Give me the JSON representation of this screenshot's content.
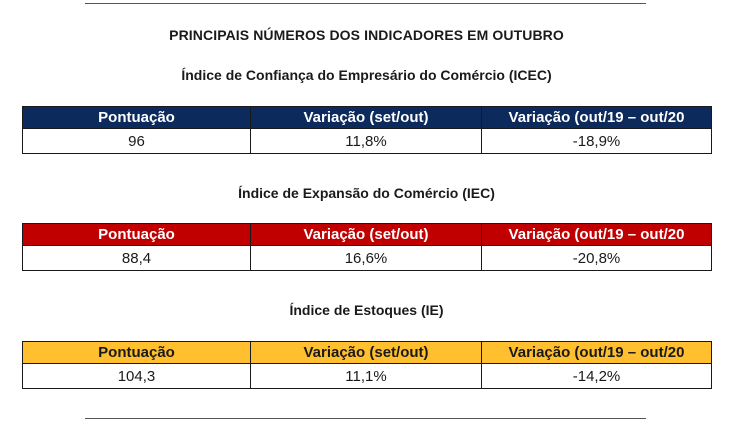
{
  "main_title": "PRINCIPAIS NÚMEROS DOS INDICADORES EM OUTUBRO",
  "colors": {
    "icec_header": "#0c2a5c",
    "iec_header": "#c00000",
    "ie_header": "#ffbf2e"
  },
  "sections": [
    {
      "title": "Índice de Confiança do Empresário do Comércio (ICEC)",
      "headers": [
        "Pontuação",
        "Variação (set/out)",
        "Variação (out/19 – out/20"
      ],
      "values": [
        "96",
        "11,8%",
        "-18,9%"
      ]
    },
    {
      "title": "Índice de Expansão do Comércio (IEC)",
      "headers": [
        "Pontuação",
        "Variação (set/out)",
        "Variação (out/19 – out/20"
      ],
      "values": [
        "88,4",
        "16,6%",
        "-20,8%"
      ]
    },
    {
      "title": "Índice de Estoques (IE)",
      "headers": [
        "Pontuação",
        "Variação (set/out)",
        "Variação (out/19 – out/20"
      ],
      "values": [
        "104,3",
        "11,1%",
        "-14,2%"
      ]
    }
  ]
}
